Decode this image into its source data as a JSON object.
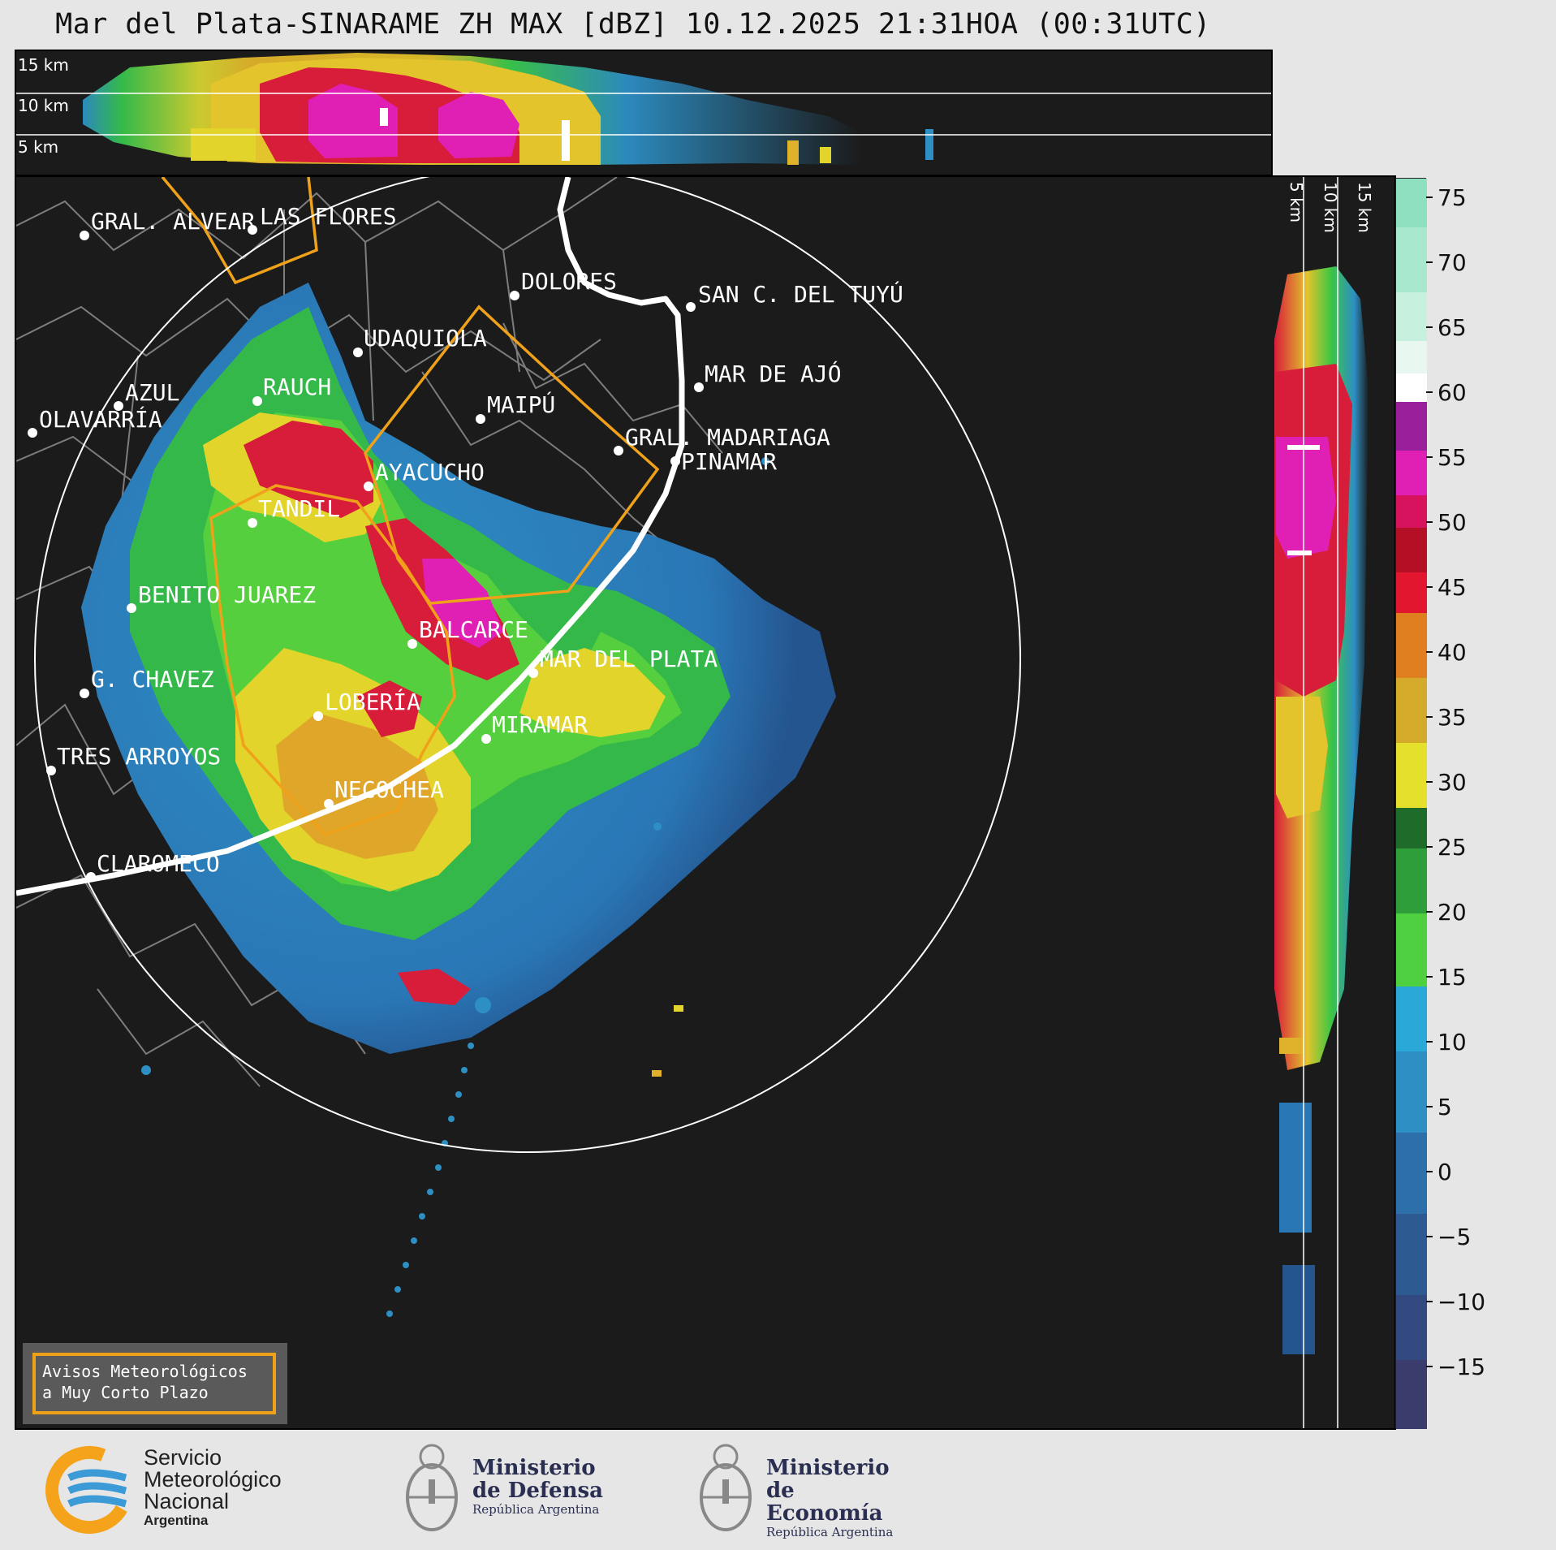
{
  "title": "Mar del Plata-SINARAME ZH MAX [dBZ] 10.12.2025 21:31HOA (00:31UTC)",
  "top_panel": {
    "height_labels": [
      "15 km",
      "10 km",
      "5 km"
    ]
  },
  "side_panel": {
    "height_labels": [
      "5 km",
      "10 km",
      "15 km"
    ]
  },
  "cities": [
    {
      "name": "GRAL. ALVEAR",
      "icon": "dot"
    },
    {
      "name": "LAS FLORES",
      "icon": "dot"
    },
    {
      "name": "DOLORES",
      "icon": "dot"
    },
    {
      "name": "SAN C. DEL TUYÚ",
      "icon": "dot"
    },
    {
      "name": "UDAQUIOLA",
      "icon": "dot"
    },
    {
      "name": "MAR DE AJÓ",
      "icon": "dot"
    },
    {
      "name": "AZUL",
      "icon": "dot"
    },
    {
      "name": "RAUCH",
      "icon": "dot"
    },
    {
      "name": "OLAVARRÍA",
      "icon": "dot"
    },
    {
      "name": "MAIPÚ",
      "icon": "dot"
    },
    {
      "name": "GRAL. MADARIAGA",
      "icon": "dot"
    },
    {
      "name": "PINAMAR",
      "icon": "dot"
    },
    {
      "name": "AYACUCHO",
      "icon": "dot"
    },
    {
      "name": "TANDIL",
      "icon": "dot"
    },
    {
      "name": "BENITO JUAREZ",
      "icon": "dot"
    },
    {
      "name": "BALCARCE",
      "icon": "dot"
    },
    {
      "name": "MAR DEL PLATA",
      "icon": "dot"
    },
    {
      "name": "G. CHAVEZ",
      "icon": "dot"
    },
    {
      "name": "LOBERÍA",
      "icon": "dot"
    },
    {
      "name": "MIRAMAR",
      "icon": "dot"
    },
    {
      "name": "TRES ARROYOS",
      "icon": "dot"
    },
    {
      "name": "NECOCHEA",
      "icon": "dot"
    },
    {
      "name": "CLAROMECO",
      "icon": "dot"
    }
  ],
  "colorbar": {
    "unit": "dBZ",
    "ticks": [
      "75",
      "70",
      "65",
      "60",
      "55",
      "50",
      "45",
      "40",
      "35",
      "30",
      "25",
      "20",
      "15",
      "10",
      "5",
      "0",
      "−5",
      "−10",
      "−15"
    ],
    "range": [
      -20,
      77
    ]
  },
  "legend": {
    "line1": "Avisos Meteorológicos",
    "line2": "a Muy Corto Plazo",
    "color": "#f0a11a"
  },
  "logos": {
    "smn": {
      "line1": "Servicio",
      "line2": "Meteorológico",
      "line3": "Nacional",
      "line4": "Argentina"
    },
    "defensa": {
      "line1": "Ministerio",
      "line2": "de Defensa",
      "line3": "República Argentina"
    },
    "economia": {
      "line1": "Ministerio",
      "line2": "de Economía",
      "line3": "República Argentina"
    }
  }
}
